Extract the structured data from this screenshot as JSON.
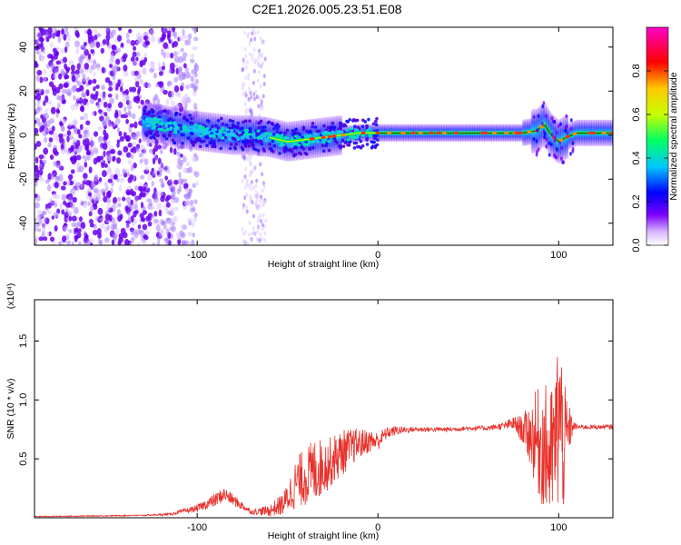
{
  "title": "C2E1.2026.005.23.51.E08",
  "colors": {
    "snr_line": "#e8302a",
    "ridge_peak": "#ff2a2a",
    "noise": "#8a2be2",
    "background": "#ffffff"
  },
  "chart_data": [
    {
      "type": "heatmap",
      "name": "spectrogram",
      "xlabel": "Height of straight line (km)",
      "ylabel": "Frequency (Hz)",
      "xlim": [
        -190,
        130
      ],
      "ylim": [
        -50,
        49
      ],
      "x_ticks": [
        -100,
        0,
        100
      ],
      "x_tick_labels": [
        "-100",
        "0",
        "100"
      ],
      "y_ticks": [
        -40,
        -20,
        0,
        20,
        40
      ],
      "y_tick_labels": [
        "-40",
        "-20",
        "0",
        "20",
        "40"
      ],
      "ridge": {
        "x": [
          -130,
          -120,
          -110,
          -100,
          -90,
          -80,
          -70,
          -60,
          -50,
          -40,
          -30,
          -20,
          -10,
          0,
          10,
          20,
          40,
          60,
          80,
          88,
          92,
          96,
          100,
          104,
          110,
          130
        ],
        "frequency": [
          6,
          5,
          3,
          2,
          1,
          0,
          0,
          -1,
          -3,
          -2,
          -1,
          0,
          1,
          1,
          1,
          1,
          1,
          1,
          1,
          2,
          5,
          0,
          -3,
          -1,
          1,
          1
        ]
      },
      "noise_region_x": [
        -190,
        -115
      ],
      "noise_band_x": [
        -75,
        -62
      ],
      "colorbar": {
        "label": "Normalized spectral amplitude",
        "range": [
          0,
          1
        ],
        "ticks": [
          0.0,
          0.2,
          0.4,
          0.6,
          0.8
        ],
        "tick_labels": [
          "0.0",
          "0.2",
          "0.4",
          "0.6",
          "0.8"
        ],
        "colormap": [
          "#ffffff",
          "#7b00ff",
          "#0000ff",
          "#00c8ff",
          "#00ff64",
          "#c8ff00",
          "#ffc800",
          "#ff0000",
          "#ff00c8"
        ]
      }
    },
    {
      "type": "line",
      "name": "snr",
      "xlabel": "Height of straight line (km)",
      "ylabel": "SNR (10 * v/v)",
      "y_scale_label": "(x10⁴)",
      "xlim": [
        -190,
        130
      ],
      "ylim": [
        0,
        1.85
      ],
      "x_ticks": [
        -100,
        0,
        100
      ],
      "x_tick_labels": [
        "-100",
        "0",
        "100"
      ],
      "y_ticks": [
        0.5,
        1.0,
        1.5
      ],
      "y_tick_labels": [
        "0.5",
        "1.0",
        "1.5"
      ],
      "series": [
        {
          "name": "SNR",
          "envelope_x": [
            -190,
            -130,
            -115,
            -100,
            -90,
            -85,
            -80,
            -70,
            -60,
            -52,
            -45,
            -35,
            -28,
            -20,
            -12,
            -5,
            0,
            5,
            10,
            20,
            30,
            40,
            50,
            60,
            70,
            75,
            80,
            85,
            88,
            92,
            95,
            98,
            100,
            103,
            106,
            108,
            110,
            120,
            130
          ],
          "envelope_y": [
            0.01,
            0.02,
            0.03,
            0.08,
            0.15,
            0.2,
            0.15,
            0.05,
            0.06,
            0.12,
            0.3,
            0.4,
            0.45,
            0.55,
            0.62,
            0.65,
            0.65,
            0.72,
            0.74,
            0.75,
            0.75,
            0.75,
            0.76,
            0.76,
            0.78,
            0.8,
            0.75,
            0.7,
            0.65,
            0.6,
            0.5,
            0.6,
            0.9,
            0.6,
            0.75,
            0.78,
            0.77,
            0.77,
            0.77
          ],
          "noise_amplitude": [
            0.004,
            0.005,
            0.01,
            0.03,
            0.06,
            0.06,
            0.05,
            0.02,
            0.05,
            0.1,
            0.22,
            0.28,
            0.22,
            0.2,
            0.14,
            0.1,
            0.08,
            0.05,
            0.04,
            0.02,
            0.02,
            0.02,
            0.02,
            0.02,
            0.03,
            0.06,
            0.12,
            0.3,
            0.45,
            0.55,
            0.6,
            0.55,
            0.9,
            0.55,
            0.2,
            0.05,
            0.02,
            0.02,
            0.02
          ]
        }
      ]
    }
  ]
}
